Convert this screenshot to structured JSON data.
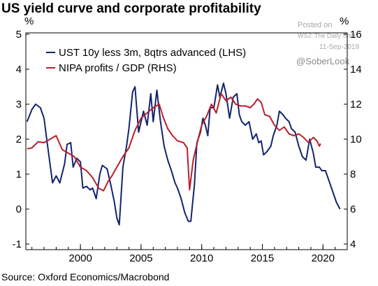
{
  "chart_data": {
    "type": "line",
    "title": "US yield curve and corporate profitability",
    "source": "Source: Oxford Economics/Macrobond",
    "left_axis": {
      "unit": "%",
      "ylim": [
        -1,
        5
      ],
      "ticks": [
        "5",
        "4",
        "3",
        "2",
        "1",
        "0",
        "-1"
      ]
    },
    "right_axis": {
      "unit": "%",
      "ylim": [
        4,
        16
      ],
      "ticks": [
        "16",
        "14",
        "12",
        "10",
        "8",
        "6",
        "4"
      ]
    },
    "x_axis": {
      "ticks": [
        "2000",
        "2005",
        "2010",
        "2015",
        "2020"
      ]
    },
    "legend_placement": "top-left",
    "grid": false,
    "series": [
      {
        "name": "UST 10y less 3m, 8qtrs advanced (LHS)",
        "axis": "left",
        "color": "#14246b",
        "points": [
          [
            1995.6,
            2.5
          ],
          [
            1996.0,
            2.85
          ],
          [
            1996.3,
            3.0
          ],
          [
            1996.7,
            2.9
          ],
          [
            1997.0,
            2.6
          ],
          [
            1997.3,
            1.8
          ],
          [
            1997.7,
            0.75
          ],
          [
            1998.0,
            0.95
          ],
          [
            1998.3,
            0.75
          ],
          [
            1998.7,
            1.3
          ],
          [
            1998.9,
            1.85
          ],
          [
            1999.2,
            1.9
          ],
          [
            1999.4,
            1.2
          ],
          [
            1999.7,
            1.45
          ],
          [
            2000.0,
            1.35
          ],
          [
            2000.2,
            0.6
          ],
          [
            2000.5,
            0.65
          ],
          [
            2000.8,
            0.55
          ],
          [
            2001.0,
            0.6
          ],
          [
            2001.3,
            0.3
          ],
          [
            2001.6,
            1.0
          ],
          [
            2001.8,
            1.25
          ],
          [
            2002.2,
            1.15
          ],
          [
            2002.5,
            0.7
          ],
          [
            2002.8,
            0.2
          ],
          [
            2003.0,
            -0.25
          ],
          [
            2003.2,
            -0.45
          ],
          [
            2003.5,
            1.2
          ],
          [
            2003.8,
            1.8
          ],
          [
            2004.0,
            2.3
          ],
          [
            2004.3,
            3.35
          ],
          [
            2004.5,
            3.5
          ],
          [
            2004.8,
            2.2
          ],
          [
            2005.0,
            2.5
          ],
          [
            2005.2,
            2.8
          ],
          [
            2005.5,
            2.4
          ],
          [
            2005.8,
            3.3
          ],
          [
            2006.0,
            2.5
          ],
          [
            2006.3,
            3.4
          ],
          [
            2006.6,
            2.5
          ],
          [
            2006.9,
            1.8
          ],
          [
            2007.2,
            1.4
          ],
          [
            2007.5,
            1.1
          ],
          [
            2007.8,
            0.75
          ],
          [
            2008.0,
            0.6
          ],
          [
            2008.3,
            0.3
          ],
          [
            2008.6,
            -0.1
          ],
          [
            2008.9,
            -0.35
          ],
          [
            2009.1,
            -0.35
          ],
          [
            2009.4,
            0.7
          ],
          [
            2009.6,
            1.9
          ],
          [
            2009.9,
            2.2
          ],
          [
            2010.1,
            2.6
          ],
          [
            2010.3,
            2.4
          ],
          [
            2010.5,
            2.1
          ],
          [
            2010.7,
            2.9
          ],
          [
            2011.0,
            2.9
          ],
          [
            2011.3,
            3.55
          ],
          [
            2011.5,
            3.2
          ],
          [
            2011.8,
            3.6
          ],
          [
            2012.0,
            3.3
          ],
          [
            2012.3,
            2.6
          ],
          [
            2012.6,
            3.2
          ],
          [
            2012.9,
            3.3
          ],
          [
            2013.1,
            2.7
          ],
          [
            2013.3,
            2.5
          ],
          [
            2013.6,
            2.4
          ],
          [
            2013.9,
            2.5
          ],
          [
            2014.2,
            2.0
          ],
          [
            2014.5,
            2.15
          ],
          [
            2014.7,
            1.9
          ],
          [
            2014.9,
            1.95
          ],
          [
            2015.1,
            1.55
          ],
          [
            2015.4,
            1.65
          ],
          [
            2015.7,
            1.8
          ],
          [
            2015.9,
            2.1
          ],
          [
            2016.2,
            2.4
          ],
          [
            2016.4,
            2.8
          ],
          [
            2016.7,
            2.7
          ],
          [
            2016.9,
            2.6
          ],
          [
            2017.2,
            2.5
          ],
          [
            2017.4,
            2.3
          ],
          [
            2017.7,
            2.2
          ],
          [
            2018.0,
            1.8
          ],
          [
            2018.3,
            1.5
          ],
          [
            2018.6,
            1.4
          ],
          [
            2018.9,
            2.0
          ],
          [
            2019.2,
            1.6
          ],
          [
            2019.4,
            1.2
          ],
          [
            2019.7,
            1.2
          ],
          [
            2019.9,
            1.1
          ],
          [
            2020.2,
            1.1
          ],
          [
            2020.5,
            0.8
          ],
          [
            2020.8,
            0.5
          ],
          [
            2021.1,
            0.2
          ],
          [
            2021.4,
            0.0
          ]
        ]
      },
      {
        "name": "NIPA profits / GDP (RHS)",
        "axis": "right",
        "color": "#b8202b",
        "points": [
          [
            1995.6,
            9.45
          ],
          [
            1996.0,
            9.5
          ],
          [
            1996.5,
            9.85
          ],
          [
            1997.0,
            9.8
          ],
          [
            1997.5,
            10.0
          ],
          [
            1998.0,
            10.2
          ],
          [
            1998.5,
            9.4
          ],
          [
            1999.0,
            9.2
          ],
          [
            1999.5,
            9.0
          ],
          [
            2000.0,
            8.4
          ],
          [
            2000.5,
            8.2
          ],
          [
            2001.0,
            7.8
          ],
          [
            2001.5,
            7.2
          ],
          [
            2001.9,
            7.05
          ],
          [
            2002.3,
            7.6
          ],
          [
            2002.6,
            7.9
          ],
          [
            2003.0,
            8.4
          ],
          [
            2003.5,
            9.0
          ],
          [
            2004.0,
            9.5
          ],
          [
            2004.5,
            10.5
          ],
          [
            2005.0,
            11.2
          ],
          [
            2005.5,
            11.5
          ],
          [
            2006.0,
            11.8
          ],
          [
            2006.5,
            12.0
          ],
          [
            2006.8,
            11.3
          ],
          [
            2007.2,
            10.6
          ],
          [
            2007.6,
            10.2
          ],
          [
            2008.0,
            9.9
          ],
          [
            2008.5,
            9.8
          ],
          [
            2008.8,
            9.5
          ],
          [
            2009.0,
            7.1
          ],
          [
            2009.3,
            8.8
          ],
          [
            2009.7,
            10.0
          ],
          [
            2010.0,
            10.8
          ],
          [
            2010.4,
            11.3
          ],
          [
            2010.8,
            12.0
          ],
          [
            2011.2,
            11.5
          ],
          [
            2011.6,
            12.6
          ],
          [
            2012.0,
            12.2
          ],
          [
            2012.4,
            12.4
          ],
          [
            2012.8,
            12.0
          ],
          [
            2013.2,
            11.9
          ],
          [
            2013.6,
            11.9
          ],
          [
            2014.0,
            11.8
          ],
          [
            2014.3,
            12.0
          ],
          [
            2014.6,
            12.3
          ],
          [
            2014.9,
            12.1
          ],
          [
            2015.2,
            11.4
          ],
          [
            2015.6,
            11.3
          ],
          [
            2016.0,
            10.8
          ],
          [
            2016.4,
            10.5
          ],
          [
            2016.8,
            10.7
          ],
          [
            2017.2,
            10.3
          ],
          [
            2017.6,
            10.2
          ],
          [
            2018.0,
            10.3
          ],
          [
            2018.4,
            10.1
          ],
          [
            2018.8,
            9.8
          ],
          [
            2019.2,
            10.1
          ],
          [
            2019.5,
            9.9
          ],
          [
            2019.7,
            9.6
          ],
          [
            2019.8,
            9.75
          ]
        ]
      }
    ]
  },
  "watermark": {
    "line1": "Posted on",
    "line2": "WSJ: The Daily Shot",
    "line3": "11-Sep-2019",
    "handle": "@SoberLook"
  }
}
